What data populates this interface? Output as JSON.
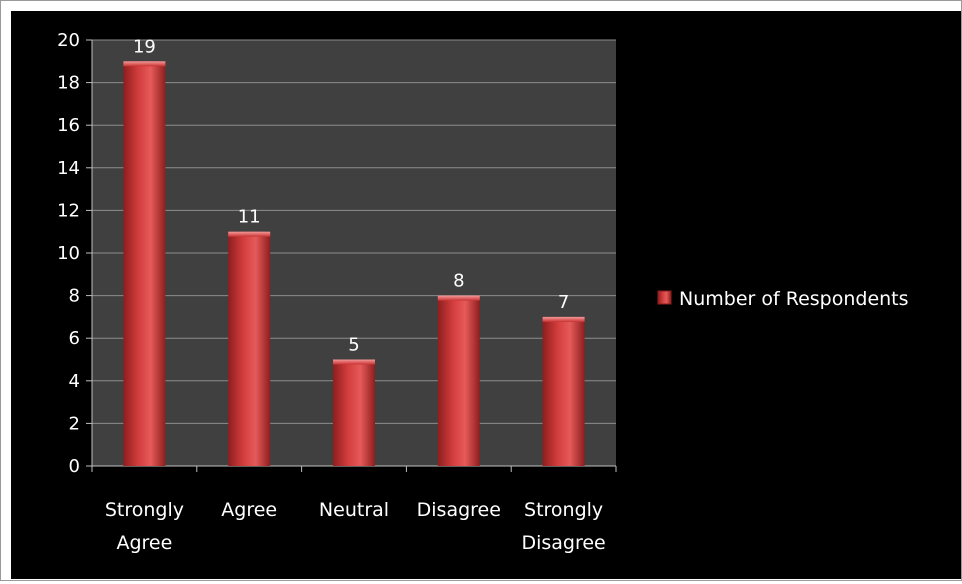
{
  "chart_data": {
    "type": "bar",
    "categories": [
      [
        "Strongly",
        "Agree"
      ],
      [
        "Agree"
      ],
      [
        "Neutral"
      ],
      [
        "Disagree"
      ],
      [
        "Strongly",
        "Disagree"
      ]
    ],
    "series": [
      {
        "name": "Number of Respondents",
        "values": [
          19,
          11,
          5,
          8,
          7
        ]
      }
    ],
    "data_labels": [
      "19",
      "11",
      "5",
      "8",
      "7"
    ],
    "y_ticks": [
      "0",
      "2",
      "4",
      "6",
      "8",
      "10",
      "12",
      "14",
      "16",
      "18",
      "20"
    ],
    "ylim": [
      0,
      20
    ],
    "grid": true,
    "legend_position": "right",
    "colors": {
      "background": "#000000",
      "plot_area": "#404040",
      "gridline": "#8c8c8c",
      "bar": "#d23c3c",
      "bar_dark": "#8e1e1e",
      "bar_light": "#f07a7a",
      "text": "#ffffff"
    }
  }
}
